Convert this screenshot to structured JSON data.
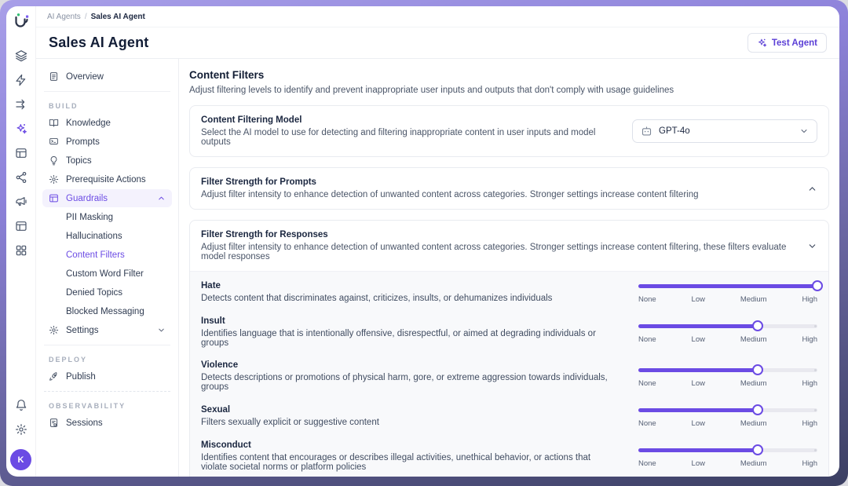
{
  "colors": {
    "accent": "#6b4be4",
    "accent_bg": "#f4f2fd",
    "frame_top": "#a89fe8",
    "frame_bottom": "#3b3f62",
    "card_border": "#e9ebf0",
    "slider_track": "#e9e9ef"
  },
  "breadcrumb": {
    "parent": "AI Agents",
    "separator": "/",
    "current": "Sales AI Agent"
  },
  "header": {
    "title": "Sales AI Agent",
    "test_agent_label": "Test Agent",
    "test_agent_icon": "sparkles-icon"
  },
  "rail": {
    "logo_icon": "logo-u-icon",
    "icons": [
      "layers-icon",
      "zap-icon",
      "arrows-transfer-icon",
      "sparkles-icon",
      "layout-icon",
      "share-icon",
      "megaphone-icon",
      "table-icon",
      "apps-grid-icon"
    ],
    "active_icon": "sparkles-icon",
    "bottom_icons": [
      "bell-icon",
      "gear-icon"
    ],
    "avatar_initial": "K"
  },
  "sidebar": {
    "overview": {
      "label": "Overview",
      "icon": "file-text-icon"
    },
    "build_label": "BUILD",
    "items": [
      {
        "label": "Knowledge",
        "icon": "book-icon"
      },
      {
        "label": "Prompts",
        "icon": "prompt-window-icon"
      },
      {
        "label": "Topics",
        "icon": "lightbulb-icon"
      },
      {
        "label": "Prerequisite Actions",
        "icon": "gear-bolt-icon"
      }
    ],
    "guardrails": {
      "label": "Guardrails",
      "icon": "table-icon",
      "expanded": true,
      "children": [
        {
          "label": "PII Masking"
        },
        {
          "label": "Hallucinations"
        },
        {
          "label": "Content Filters",
          "active": true
        },
        {
          "label": "Custom Word Filter"
        },
        {
          "label": "Denied Topics"
        },
        {
          "label": "Blocked Messaging"
        }
      ]
    },
    "settings": {
      "label": "Settings",
      "icon": "gear-icon",
      "expanded": false
    },
    "deploy_label": "DEPLOY",
    "publish": {
      "label": "Publish",
      "icon": "rocket-icon"
    },
    "observability_label": "OBSERVABILITY",
    "sessions": {
      "label": "Sessions",
      "icon": "sessions-file-icon"
    }
  },
  "content": {
    "title": "Content Filters",
    "description": "Adjust filtering levels to identify and prevent inappropriate user inputs and outputs that don't comply with usage guidelines",
    "model_card": {
      "title": "Content Filtering Model",
      "description": "Select the AI model to use for detecting and filtering inappropriate content in user inputs and model outputs",
      "selected_model": "GPT-4o",
      "model_icon": "bot-icon"
    },
    "prompts_card": {
      "title": "Filter Strength for Prompts",
      "description": "Adjust filter intensity to enhance detection of unwanted content across categories. Stronger settings increase content filtering",
      "chevron": "up"
    },
    "responses_card": {
      "title": "Filter Strength for Responses",
      "description": "Adjust filter intensity to enhance detection of unwanted content across categories. Stronger settings increase content filtering, these filters evaluate model responses",
      "chevron": "down",
      "scale_labels": [
        "None",
        "Low",
        "Medium",
        "High"
      ],
      "filters": [
        {
          "name": "Hate",
          "description": "Detects content that discriminates against, criticizes, insults, or dehumanizes individuals",
          "level": "High"
        },
        {
          "name": "Insult",
          "description": "Identifies language that is intentionally offensive, disrespectful, or aimed at degrading individuals or groups",
          "level": "Medium"
        },
        {
          "name": "Violence",
          "description": "Detects descriptions or promotions of physical harm, gore, or extreme aggression towards individuals, groups",
          "level": "Medium"
        },
        {
          "name": "Sexual",
          "description": "Filters sexually explicit or suggestive content",
          "level": "Medium"
        },
        {
          "name": "Misconduct",
          "description": "Identifies content that encourages or describes illegal activities, unethical behavior, or actions that violate societal norms or platform policies",
          "level": "Medium"
        }
      ]
    }
  }
}
